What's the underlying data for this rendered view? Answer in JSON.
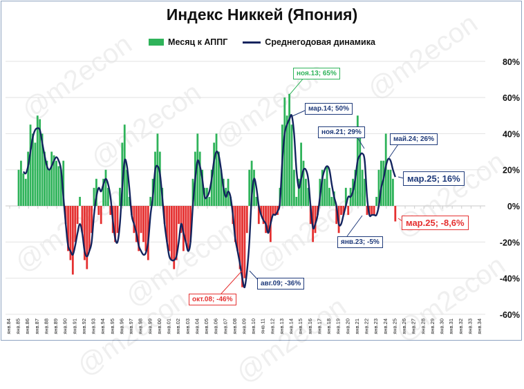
{
  "chart_data": {
    "type": "bar+line",
    "title": "Индекс Никкей (Япония)",
    "legend_placement": "top",
    "y_unit": "%",
    "ylim": [
      -60,
      80
    ],
    "yticks": [
      "80%",
      "60%",
      "40%",
      "20%",
      "0%",
      "-20%",
      "-40%",
      "-60%"
    ],
    "ytick_values": [
      80,
      60,
      40,
      20,
      0,
      -20,
      -40,
      -60
    ],
    "xticks": [
      "янв.84",
      "янв.85",
      "янв.86",
      "янв.87",
      "янв.88",
      "янв.89",
      "янв.90",
      "янв.91",
      "янв.92",
      "янв.93",
      "янв.94",
      "янв.95",
      "янв.96",
      "янв.97",
      "янв.98",
      "янв.99",
      "янв.00",
      "янв.01",
      "янв.02",
      "янв.03",
      "янв.04",
      "янв.05",
      "янв.06",
      "янв.07",
      "янв.08",
      "янв.09",
      "янв.10",
      "янв.11",
      "янв.12",
      "янв.13",
      "янв.14",
      "янв.15",
      "янв.16",
      "янв.17",
      "янв.18",
      "янв.19",
      "янв.20",
      "янв.21",
      "янв.22",
      "янв.23",
      "янв.24",
      "янв.25",
      "янв.26",
      "янв.27",
      "янв.28",
      "янв.29",
      "янв.30",
      "янв.31",
      "янв.32",
      "янв.33",
      "янв.34"
    ],
    "grid": "horizontal",
    "colors": {
      "positive_bar": "#2fb35a",
      "negative_bar": "#e53030",
      "line": "#13245e"
    },
    "series": [
      {
        "name": "Месяц к АППГ",
        "type": "bar",
        "start": "1985-Q1",
        "frequency": "quarterly",
        "values": [
          20,
          25,
          18,
          15,
          30,
          45,
          40,
          35,
          50,
          48,
          40,
          30,
          25,
          20,
          30,
          28,
          25,
          22,
          20,
          25,
          -10,
          -25,
          -30,
          -38,
          -20,
          -10,
          5,
          -15,
          -30,
          -35,
          -25,
          -15,
          10,
          15,
          -5,
          -10,
          15,
          20,
          10,
          -5,
          -15,
          -20,
          -15,
          10,
          35,
          45,
          20,
          5,
          -5,
          -15,
          -20,
          -25,
          -15,
          -20,
          -25,
          -30,
          5,
          15,
          30,
          40,
          30,
          10,
          -10,
          -20,
          -25,
          -30,
          -35,
          -30,
          -10,
          -15,
          -25,
          -20,
          -25,
          -20,
          15,
          30,
          40,
          30,
          20,
          10,
          10,
          5,
          20,
          35,
          40,
          30,
          20,
          15,
          10,
          15,
          5,
          -10,
          -20,
          -25,
          -35,
          -45,
          -40,
          -15,
          20,
          25,
          20,
          5,
          -10,
          -5,
          -10,
          -15,
          -15,
          -20,
          -5,
          -5,
          -5,
          10,
          45,
          60,
          50,
          62,
          45,
          20,
          5,
          15,
          35,
          25,
          15,
          10,
          -10,
          -20,
          -15,
          -5,
          15,
          20,
          15,
          22,
          10,
          5,
          8,
          -10,
          -15,
          -5,
          -5,
          10,
          -5,
          10,
          15,
          20,
          50,
          40,
          20,
          15,
          -5,
          -5,
          -5,
          -5,
          5,
          20,
          25,
          25,
          40,
          20,
          20,
          15,
          -8.6
        ]
      },
      {
        "name": "Среднегодовая динамика",
        "type": "line",
        "start": "1985-Q3",
        "frequency": "quarterly",
        "values": [
          19,
          18,
          22,
          30,
          38,
          42,
          43,
          42,
          35,
          28,
          22,
          20,
          22,
          25,
          27,
          25,
          20,
          5,
          -10,
          -22,
          -25,
          -27,
          -22,
          -15,
          -10,
          -15,
          -25,
          -28,
          -25,
          -20,
          -5,
          5,
          10,
          8,
          12,
          15,
          12,
          5,
          -8,
          -18,
          -20,
          -10,
          10,
          25,
          22,
          10,
          -5,
          -10,
          -15,
          -22,
          -25,
          -27,
          -26,
          -20,
          -5,
          5,
          20,
          22,
          18,
          5,
          -10,
          -20,
          -28,
          -30,
          -30,
          -28,
          -20,
          -10,
          -15,
          -20,
          -25,
          -20,
          0,
          15,
          25,
          22,
          15,
          5,
          5,
          8,
          15,
          25,
          30,
          28,
          20,
          10,
          5,
          8,
          5,
          -5,
          -18,
          -25,
          -32,
          -40,
          -45,
          -36,
          -20,
          5,
          15,
          10,
          0,
          -5,
          -8,
          -10,
          -15,
          -10,
          -5,
          -5,
          -3,
          2,
          25,
          40,
          45,
          48,
          50,
          40,
          20,
          10,
          15,
          20,
          20,
          15,
          0,
          -12,
          -10,
          -5,
          5,
          15,
          20,
          22,
          20,
          12,
          5,
          0,
          -10,
          -10,
          -5,
          0,
          5,
          5,
          8,
          15,
          25,
          28,
          29,
          25,
          5,
          -5,
          -5,
          -5,
          -5,
          0,
          10,
          15,
          22,
          26,
          25,
          20,
          16
        ]
      }
    ],
    "annotations": [
      {
        "label": "ноя.13; 65%",
        "series": "Месяц к АППГ"
      },
      {
        "label": "мар.14; 50%",
        "series": "Среднегодовая динамика"
      },
      {
        "label": "ноя.21; 29%",
        "series": "Среднегодовая динамика"
      },
      {
        "label": "май.24; 26%",
        "series": "Среднегодовая динамика"
      },
      {
        "label": "мар.25; 16%",
        "series": "Среднегодовая динамика"
      },
      {
        "label": "мар.25; -8,6%",
        "series": "Месяц к АППГ"
      },
      {
        "label": "янв.23; -5%",
        "series": "Среднегодовая динамика"
      },
      {
        "label": "авг.09; -36%",
        "series": "Среднегодовая динамика"
      },
      {
        "label": "окт.08; -46%",
        "series": "Месяц к АППГ"
      }
    ]
  },
  "watermark": "@m2econ"
}
